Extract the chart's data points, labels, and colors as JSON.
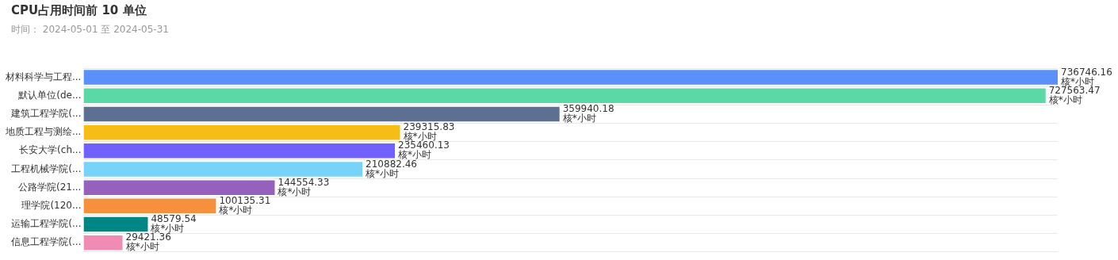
{
  "chart_data": {
    "type": "bar",
    "orientation": "horizontal",
    "title": "CPU占用时间前 10 单位",
    "subtitle": "时间： 2024-05-01 至 2024-05-31",
    "categories": [
      "材料科学与工程...",
      "默认单位(de...",
      "建筑工程学院(...",
      "地质工程与测绘...",
      "长安大学(ch...",
      "工程机械学院(...",
      "公路学院(21...",
      "理学院(120...",
      "运输工程学院(...",
      "信息工程学院(..."
    ],
    "values": [
      736746.16,
      727563.47,
      359940.18,
      239315.83,
      235460.13,
      210882.46,
      144554.33,
      100135.31,
      48579.54,
      29421.36
    ],
    "colors": [
      "#5b8ff9",
      "#5ad8a6",
      "#5d7092",
      "#f6bd16",
      "#7262fd",
      "#78d3f8",
      "#9661bc",
      "#f6903d",
      "#008685",
      "#f08bb4"
    ],
    "value_labels": [
      "736746.16\n核*小时",
      "727563.47\n核*小时",
      "359940.18\n核*小时",
      "239315.83\n核*小时",
      "235460.13\n核*小时",
      "210882.46\n核*小时",
      "144554.33\n核*小时",
      "100135.31\n核*小时",
      "48579.54\n核*小时",
      "29421.36\n核*小时"
    ],
    "grid": "y",
    "legend": false,
    "tick_labels": "y"
  }
}
